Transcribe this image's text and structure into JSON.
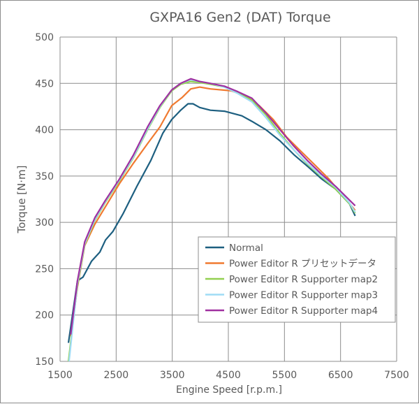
{
  "chart_data": {
    "type": "line",
    "title": "GXPA16 Gen2 (DAT) Torque",
    "xlabel": "Engine Speed [r.p.m.]",
    "ylabel": "Torque [N·m]",
    "xlim": [
      1500,
      7500
    ],
    "ylim": [
      150,
      500
    ],
    "xticks": [
      1500,
      2500,
      3500,
      4500,
      5500,
      6500,
      7500
    ],
    "yticks": [
      150,
      200,
      250,
      300,
      350,
      400,
      450,
      500
    ],
    "grid": true,
    "legend": "bottom-right",
    "series": [
      {
        "name": "Normal",
        "color": "#1d5f80",
        "x": [
          1650,
          1810,
          1910,
          2060,
          2210,
          2310,
          2440,
          2620,
          2870,
          3120,
          3330,
          3490,
          3650,
          3780,
          3870,
          3990,
          4180,
          4430,
          4740,
          4920,
          5170,
          5420,
          5670,
          5920,
          6160,
          6410,
          6660,
          6760
        ],
        "y": [
          170,
          237,
          241,
          258,
          268,
          281,
          290,
          309,
          339,
          367,
          396,
          411,
          421,
          428,
          428,
          424,
          421,
          420,
          415,
          409,
          400,
          388,
          373,
          360,
          347,
          336,
          320,
          307
        ]
      },
      {
        "name": "Power Editor R プリセットデータ",
        "color": "#f07a30",
        "x": [
          1690,
          1810,
          1940,
          2120,
          2310,
          2560,
          2810,
          3060,
          3280,
          3490,
          3680,
          3830,
          3990,
          4180,
          4550,
          4800,
          5050,
          5300,
          5540,
          5790,
          6040,
          6290,
          6540,
          6760
        ],
        "y": [
          177,
          230,
          275,
          298,
          317,
          342,
          364,
          385,
          403,
          426,
          435,
          444,
          446,
          444,
          442,
          437,
          426,
          411,
          392,
          377,
          362,
          347,
          329,
          313
        ]
      },
      {
        "name": "Power Editor R Supporter map2",
        "color": "#92d050",
        "x": [
          1650,
          1810,
          1940,
          2120,
          2310,
          2560,
          2810,
          3060,
          3280,
          3490,
          3650,
          3830,
          3990,
          4180,
          4430,
          4670,
          4920,
          5170,
          5420,
          5670,
          5920,
          6160,
          6410,
          6660,
          6760
        ],
        "y": [
          150,
          232,
          276,
          302,
          322,
          345,
          370,
          400,
          424,
          442,
          449,
          452,
          451,
          449,
          446,
          440,
          432,
          416,
          396,
          378,
          362,
          349,
          336,
          320,
          310
        ]
      },
      {
        "name": "Power Editor R Supporter map3",
        "color": "#9fdcf5",
        "x": [
          1660,
          1810,
          1940,
          2120,
          2310,
          2560,
          2810,
          3060,
          3280,
          3490,
          3650,
          3830,
          3990,
          4180,
          4430,
          4670,
          4920,
          5170,
          5420,
          5670,
          5920,
          6160,
          6410,
          6660,
          6760
        ],
        "y": [
          150,
          234,
          277,
          303,
          323,
          346,
          371,
          401,
          425,
          443,
          450,
          454,
          452,
          450,
          446,
          439,
          430,
          413,
          394,
          378,
          363,
          350,
          338,
          321,
          311
        ]
      },
      {
        "name": "Power Editor R Supporter map4",
        "color": "#a030a0",
        "x": [
          1690,
          1810,
          1940,
          2120,
          2310,
          2560,
          2810,
          3060,
          3280,
          3490,
          3650,
          3830,
          3990,
          4180,
          4430,
          4670,
          4920,
          5170,
          5420,
          5670,
          5920,
          6160,
          6410,
          6660,
          6760
        ],
        "y": [
          179,
          237,
          279,
          305,
          324,
          347,
          373,
          403,
          426,
          443,
          450,
          455,
          452,
          450,
          447,
          441,
          434,
          418,
          400,
          382,
          366,
          352,
          339,
          324,
          318
        ]
      }
    ]
  }
}
